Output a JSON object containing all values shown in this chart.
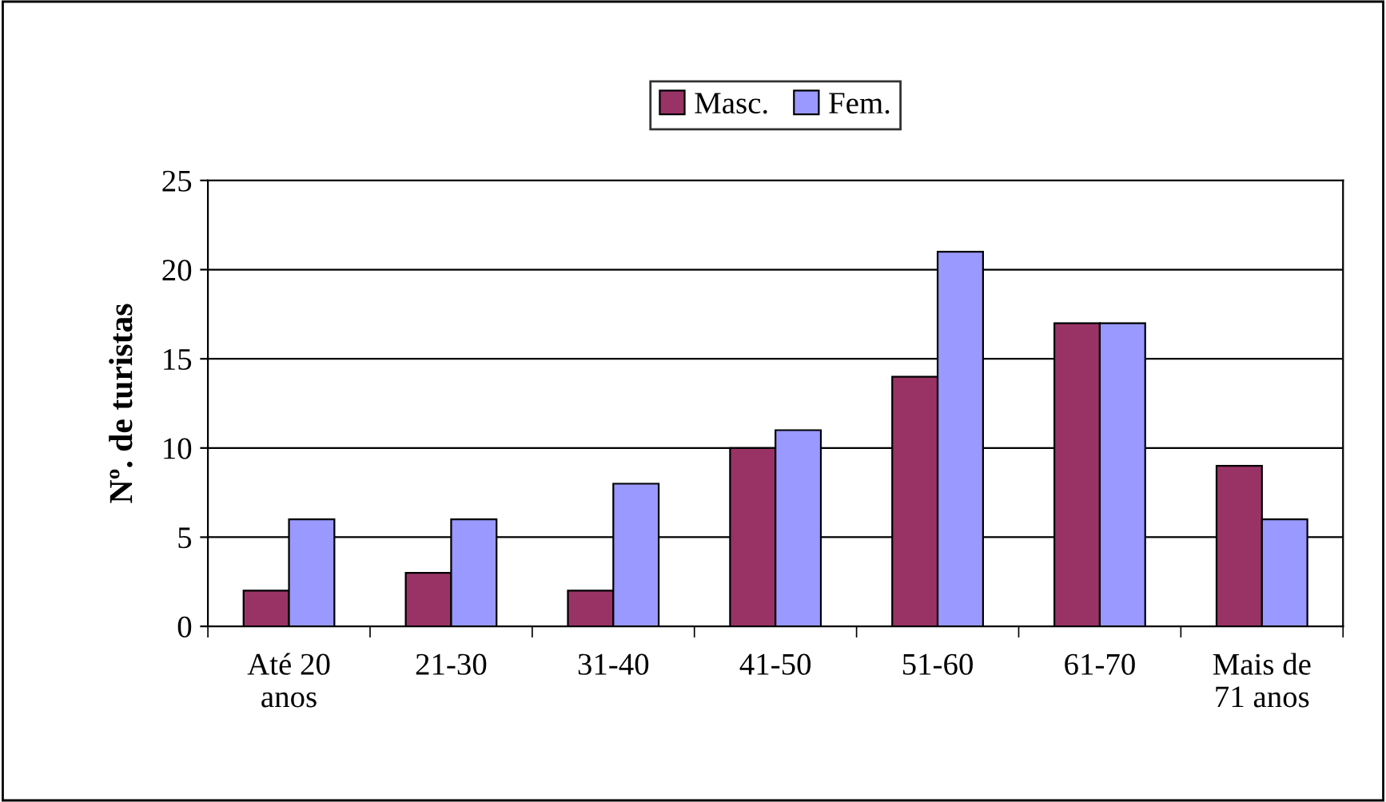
{
  "chart_data": {
    "type": "bar",
    "ylabel": "Nº. de turistas",
    "categories": [
      "Até 20\nanos",
      "21-30",
      "31-40",
      "41-50",
      "51-60",
      "61-70",
      "Mais de\n71 anos"
    ],
    "series": [
      {
        "name": "Masc.",
        "color": "#993366",
        "values": [
          2,
          3,
          2,
          10,
          14,
          17,
          9
        ]
      },
      {
        "name": "Fem.",
        "color": "#9999ff",
        "values": [
          6,
          6,
          8,
          11,
          21,
          17,
          6
        ]
      }
    ],
    "ylim": [
      0,
      25
    ],
    "yticks": [
      0,
      5,
      10,
      15,
      20,
      25
    ],
    "grid": "y",
    "legend": "top"
  }
}
